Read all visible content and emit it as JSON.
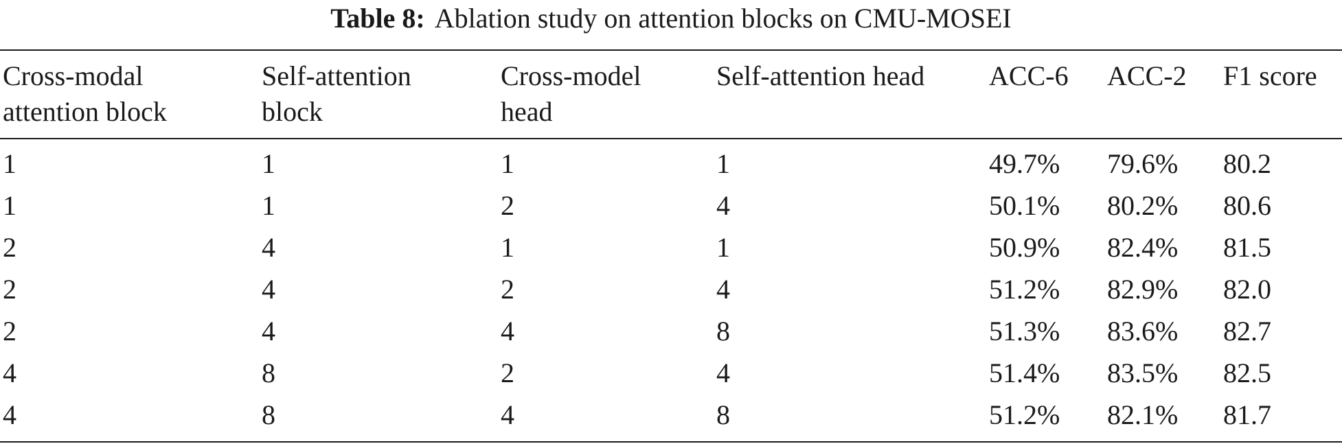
{
  "caption": {
    "label": "Table 8:",
    "text": "Ablation study on attention blocks on CMU-MOSEI"
  },
  "table": {
    "headers": [
      "Cross-modal\nattention block",
      "Self-attention\nblock",
      "Cross-model\nhead",
      "Self-attention head",
      "ACC-6",
      "ACC-2",
      "F1 score"
    ],
    "rows": [
      [
        "1",
        "1",
        "1",
        "1",
        "49.7%",
        "79.6%",
        "80.2"
      ],
      [
        "1",
        "1",
        "2",
        "4",
        "50.1%",
        "80.2%",
        "80.6"
      ],
      [
        "2",
        "4",
        "1",
        "1",
        "50.9%",
        "82.4%",
        "81.5"
      ],
      [
        "2",
        "4",
        "2",
        "4",
        "51.2%",
        "82.9%",
        "82.0"
      ],
      [
        "2",
        "4",
        "4",
        "8",
        "51.3%",
        "83.6%",
        "82.7"
      ],
      [
        "4",
        "8",
        "2",
        "4",
        "51.4%",
        "83.5%",
        "82.5"
      ],
      [
        "4",
        "8",
        "4",
        "8",
        "51.2%",
        "82.1%",
        "81.7"
      ]
    ]
  }
}
